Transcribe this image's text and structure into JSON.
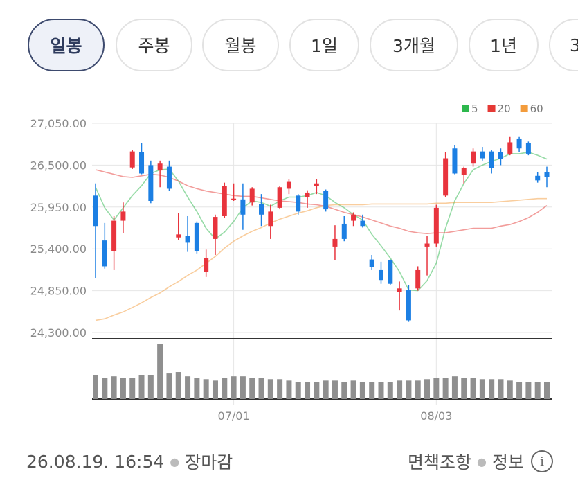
{
  "tabs": [
    "일봉",
    "주봉",
    "월봉",
    "1일",
    "3개월",
    "1년",
    "3"
  ],
  "chart_data": {
    "type": "candlestick",
    "categories": [
      null,
      null,
      null,
      null,
      null,
      null,
      null,
      null,
      null,
      null,
      null,
      null,
      null,
      null,
      null,
      "07/01",
      null,
      null,
      null,
      null,
      null,
      null,
      null,
      null,
      null,
      null,
      null,
      null,
      null,
      null,
      null,
      null,
      null,
      null,
      null,
      null,
      null,
      "08/03",
      null,
      null,
      null,
      null,
      null,
      null,
      null,
      null,
      null,
      null,
      null,
      null
    ],
    "open": [
      26100,
      25510,
      25370,
      25770,
      26470,
      26670,
      26500,
      26430,
      26480,
      25550,
      25570,
      25740,
      25100,
      25530,
      25830,
      26040,
      26050,
      26010,
      25990,
      25700,
      25940,
      26190,
      26100,
      26080,
      26230,
      26160,
      25430,
      25730,
      25770,
      25770,
      25260,
      25120,
      25250,
      24830,
      24860,
      24880,
      25430,
      25470,
      26100,
      26720,
      26370,
      26520,
      26680,
      26680,
      26670,
      26650,
      26850,
      26790,
      26360,
      26410
    ],
    "high": [
      26260,
      25740,
      25830,
      26010,
      26700,
      26790,
      26560,
      26560,
      26560,
      25870,
      25830,
      25760,
      25390,
      25850,
      26270,
      26260,
      26260,
      26210,
      26120,
      25980,
      26230,
      26320,
      26120,
      26170,
      26320,
      26180,
      25710,
      25830,
      25880,
      25850,
      25320,
      25230,
      25260,
      24970,
      24920,
      25170,
      25570,
      25980,
      26670,
      26760,
      26480,
      26720,
      26740,
      26700,
      26720,
      26870,
      26870,
      26810,
      26410,
      26480
    ],
    "low": [
      25010,
      25140,
      25120,
      25610,
      26450,
      26380,
      26000,
      26210,
      26160,
      25520,
      25360,
      25340,
      25030,
      25320,
      25810,
      26030,
      25650,
      25970,
      25700,
      25530,
      25920,
      26120,
      25850,
      25940,
      26120,
      25890,
      25250,
      25500,
      25700,
      25680,
      25120,
      24940,
      24920,
      24590,
      24440,
      24850,
      25050,
      25430,
      26080,
      26380,
      26250,
      26480,
      26560,
      26390,
      26500,
      26630,
      26670,
      26630,
      26270,
      26210
    ],
    "close": [
      25700,
      25170,
      25770,
      25890,
      26680,
      26390,
      26030,
      26520,
      26190,
      25590,
      25480,
      25370,
      25280,
      25820,
      26230,
      26060,
      25850,
      26190,
      25850,
      25890,
      26210,
      26280,
      25890,
      26140,
      26260,
      25920,
      25530,
      25530,
      25850,
      25700,
      25160,
      24990,
      24940,
      24880,
      24460,
      25120,
      25470,
      25940,
      26590,
      26390,
      26460,
      26680,
      26590,
      26460,
      26580,
      26800,
      26720,
      26650,
      26300,
      26340
    ],
    "up_color": "#e8343d",
    "down_color": "#1c7fe3",
    "series": [
      {
        "name": "5",
        "color": "#2db84d",
        "values": [
          26210,
          25940,
          25780,
          25940,
          26100,
          26230,
          26390,
          26440,
          26450,
          26290,
          26080,
          25890,
          25670,
          25530,
          25620,
          25760,
          25940,
          26030,
          26010,
          25960,
          26030,
          26080,
          26080,
          26100,
          26140,
          26100,
          26010,
          25940,
          25850,
          25780,
          25590,
          25440,
          25280,
          25100,
          24860,
          24850,
          24980,
          25210,
          25670,
          26030,
          26260,
          26440,
          26500,
          26550,
          26590,
          26650,
          26650,
          26670,
          26630,
          26580
        ]
      },
      {
        "name": "20",
        "color": "#e53935",
        "values": [
          26440,
          26410,
          26380,
          26350,
          26340,
          26360,
          26380,
          26370,
          26340,
          26290,
          26230,
          26190,
          26160,
          26140,
          26120,
          26100,
          26090,
          26090,
          26070,
          26050,
          26030,
          26020,
          26010,
          25990,
          25980,
          25960,
          25920,
          25880,
          25850,
          25820,
          25780,
          25740,
          25700,
          25670,
          25630,
          25610,
          25600,
          25610,
          25610,
          25630,
          25650,
          25670,
          25670,
          25670,
          25700,
          25720,
          25760,
          25810,
          25880,
          25970
        ]
      },
      {
        "name": "60",
        "color": "#f39c3c",
        "values": [
          24460,
          24480,
          24530,
          24570,
          24630,
          24690,
          24760,
          24820,
          24900,
          24970,
          25050,
          25120,
          25210,
          25300,
          25410,
          25500,
          25570,
          25630,
          25680,
          25740,
          25790,
          25830,
          25870,
          25900,
          25940,
          25970,
          25980,
          25980,
          25980,
          25980,
          25990,
          25990,
          25990,
          25990,
          25990,
          25990,
          25990,
          26000,
          26000,
          26010,
          26010,
          26010,
          26010,
          26010,
          26020,
          26030,
          26040,
          26050,
          26060,
          26060
        ]
      }
    ],
    "volume": [
      34,
      30,
      32,
      30,
      30,
      34,
      34,
      78,
      36,
      38,
      32,
      30,
      28,
      26,
      30,
      32,
      32,
      30,
      30,
      28,
      28,
      26,
      24,
      24,
      24,
      26,
      26,
      24,
      26,
      24,
      24,
      24,
      24,
      26,
      26,
      26,
      28,
      30,
      30,
      32,
      30,
      30,
      28,
      28,
      28,
      26,
      24,
      24,
      24,
      24
    ],
    "volume_color": "#8f8f8f",
    "ylim": [
      24300,
      27050
    ],
    "yticks": [
      {
        "value": 27050,
        "label": "27,050.00"
      },
      {
        "value": 26500,
        "label": "26,500.00"
      },
      {
        "value": 25950,
        "label": "25,950.00"
      },
      {
        "value": 25400,
        "label": "25,400.00"
      },
      {
        "value": 24850,
        "label": "24,850.00"
      },
      {
        "value": 24300,
        "label": "24,300.00"
      }
    ],
    "grid": true
  },
  "footer": {
    "timestamp": "26.08.19. 16:54",
    "status": "장마감",
    "disclaimer": "면책조항",
    "info": "정보"
  }
}
